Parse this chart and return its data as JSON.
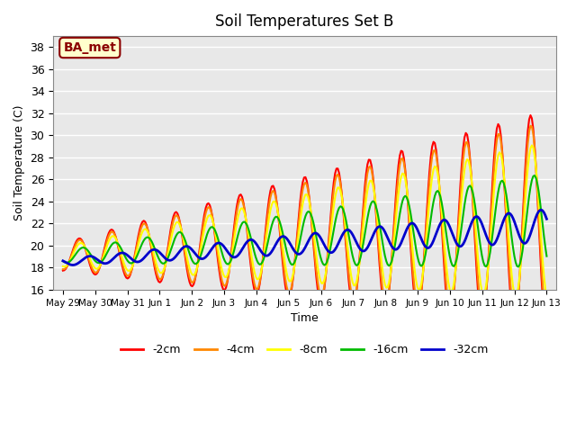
{
  "title": "Soil Temperatures Set B",
  "xlabel": "Time",
  "ylabel": "Soil Temperature (C)",
  "ylim": [
    16,
    39
  ],
  "yticks": [
    16,
    18,
    20,
    22,
    24,
    26,
    28,
    30,
    32,
    34,
    36,
    38
  ],
  "annotation": "BA_met",
  "x_labels": [
    "May 29",
    "May 30",
    "May 31",
    "Jun 1",
    "Jun 2",
    "Jun 3",
    "Jun 4",
    "Jun 5",
    "Jun 6",
    "Jun 7",
    "Jun 8",
    "Jun 9",
    "Jun 10",
    "Jun 11",
    "Jun 12",
    "Jun 13"
  ],
  "colors": [
    "#ff0000",
    "#ff8800",
    "#ffff00",
    "#00bb00",
    "#0000cc"
  ],
  "lws": [
    1.5,
    1.5,
    1.5,
    1.5,
    2.0
  ],
  "labels": [
    "-2cm",
    "-4cm",
    "-8cm",
    "-16cm",
    "-32cm"
  ],
  "n_days": 15,
  "points_per_day": 24,
  "trend_base": 19.0,
  "trend_slope": 0.22
}
